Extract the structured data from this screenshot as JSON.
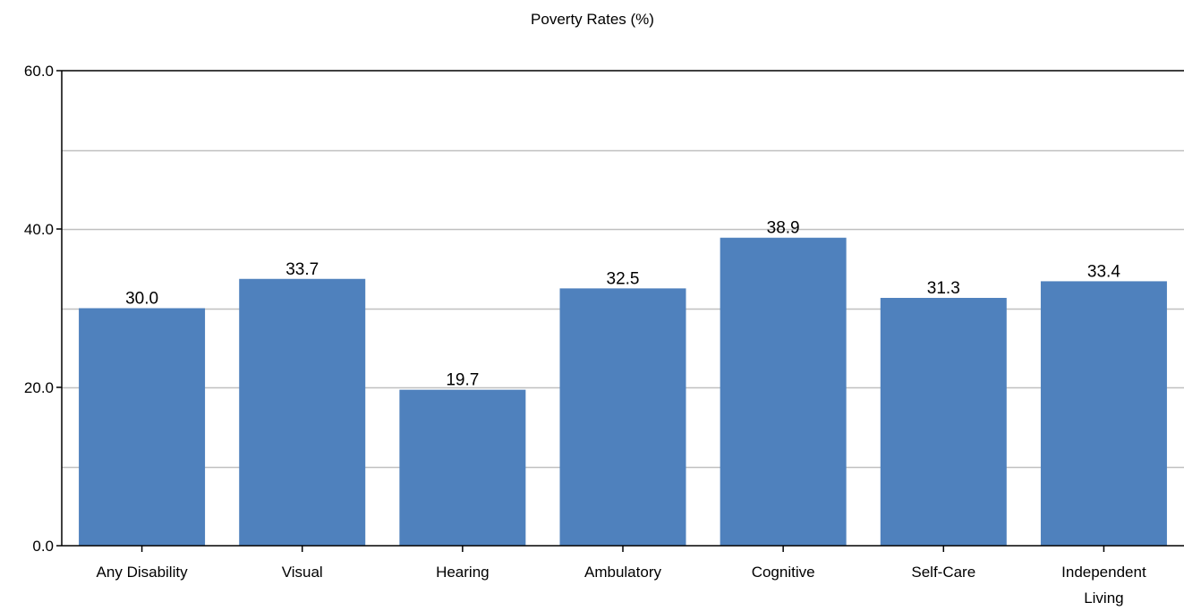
{
  "chart_data": {
    "type": "bar",
    "title": "Poverty Rates (%)",
    "xlabel": "",
    "ylabel": "",
    "categories": [
      "Any Disability",
      "Visual",
      "Hearing",
      "Ambulatory",
      "Cognitive",
      "Self-Care",
      "Independent Living"
    ],
    "category_lines": [
      [
        "Any Disability"
      ],
      [
        "Visual"
      ],
      [
        "Hearing"
      ],
      [
        "Ambulatory"
      ],
      [
        "Cognitive"
      ],
      [
        "Self-Care"
      ],
      [
        "Independent",
        "Living"
      ]
    ],
    "values": [
      30.0,
      33.7,
      19.7,
      32.5,
      38.9,
      31.3,
      33.4
    ],
    "value_labels": [
      "30.0",
      "33.7",
      "19.7",
      "32.5",
      "38.9",
      "31.3",
      "33.4"
    ],
    "ylim": [
      0,
      60
    ],
    "yticks": [
      0,
      20,
      40,
      60
    ],
    "ytick_labels": [
      "0.0",
      "20.0",
      "40.0",
      "60.0"
    ],
    "gridlines": [
      10,
      20,
      30,
      40,
      50
    ],
    "grid": true,
    "legend": "none",
    "bar_color": "#4f81bd",
    "grid_color": "#c0c0c0",
    "axis_color": "#000000"
  }
}
